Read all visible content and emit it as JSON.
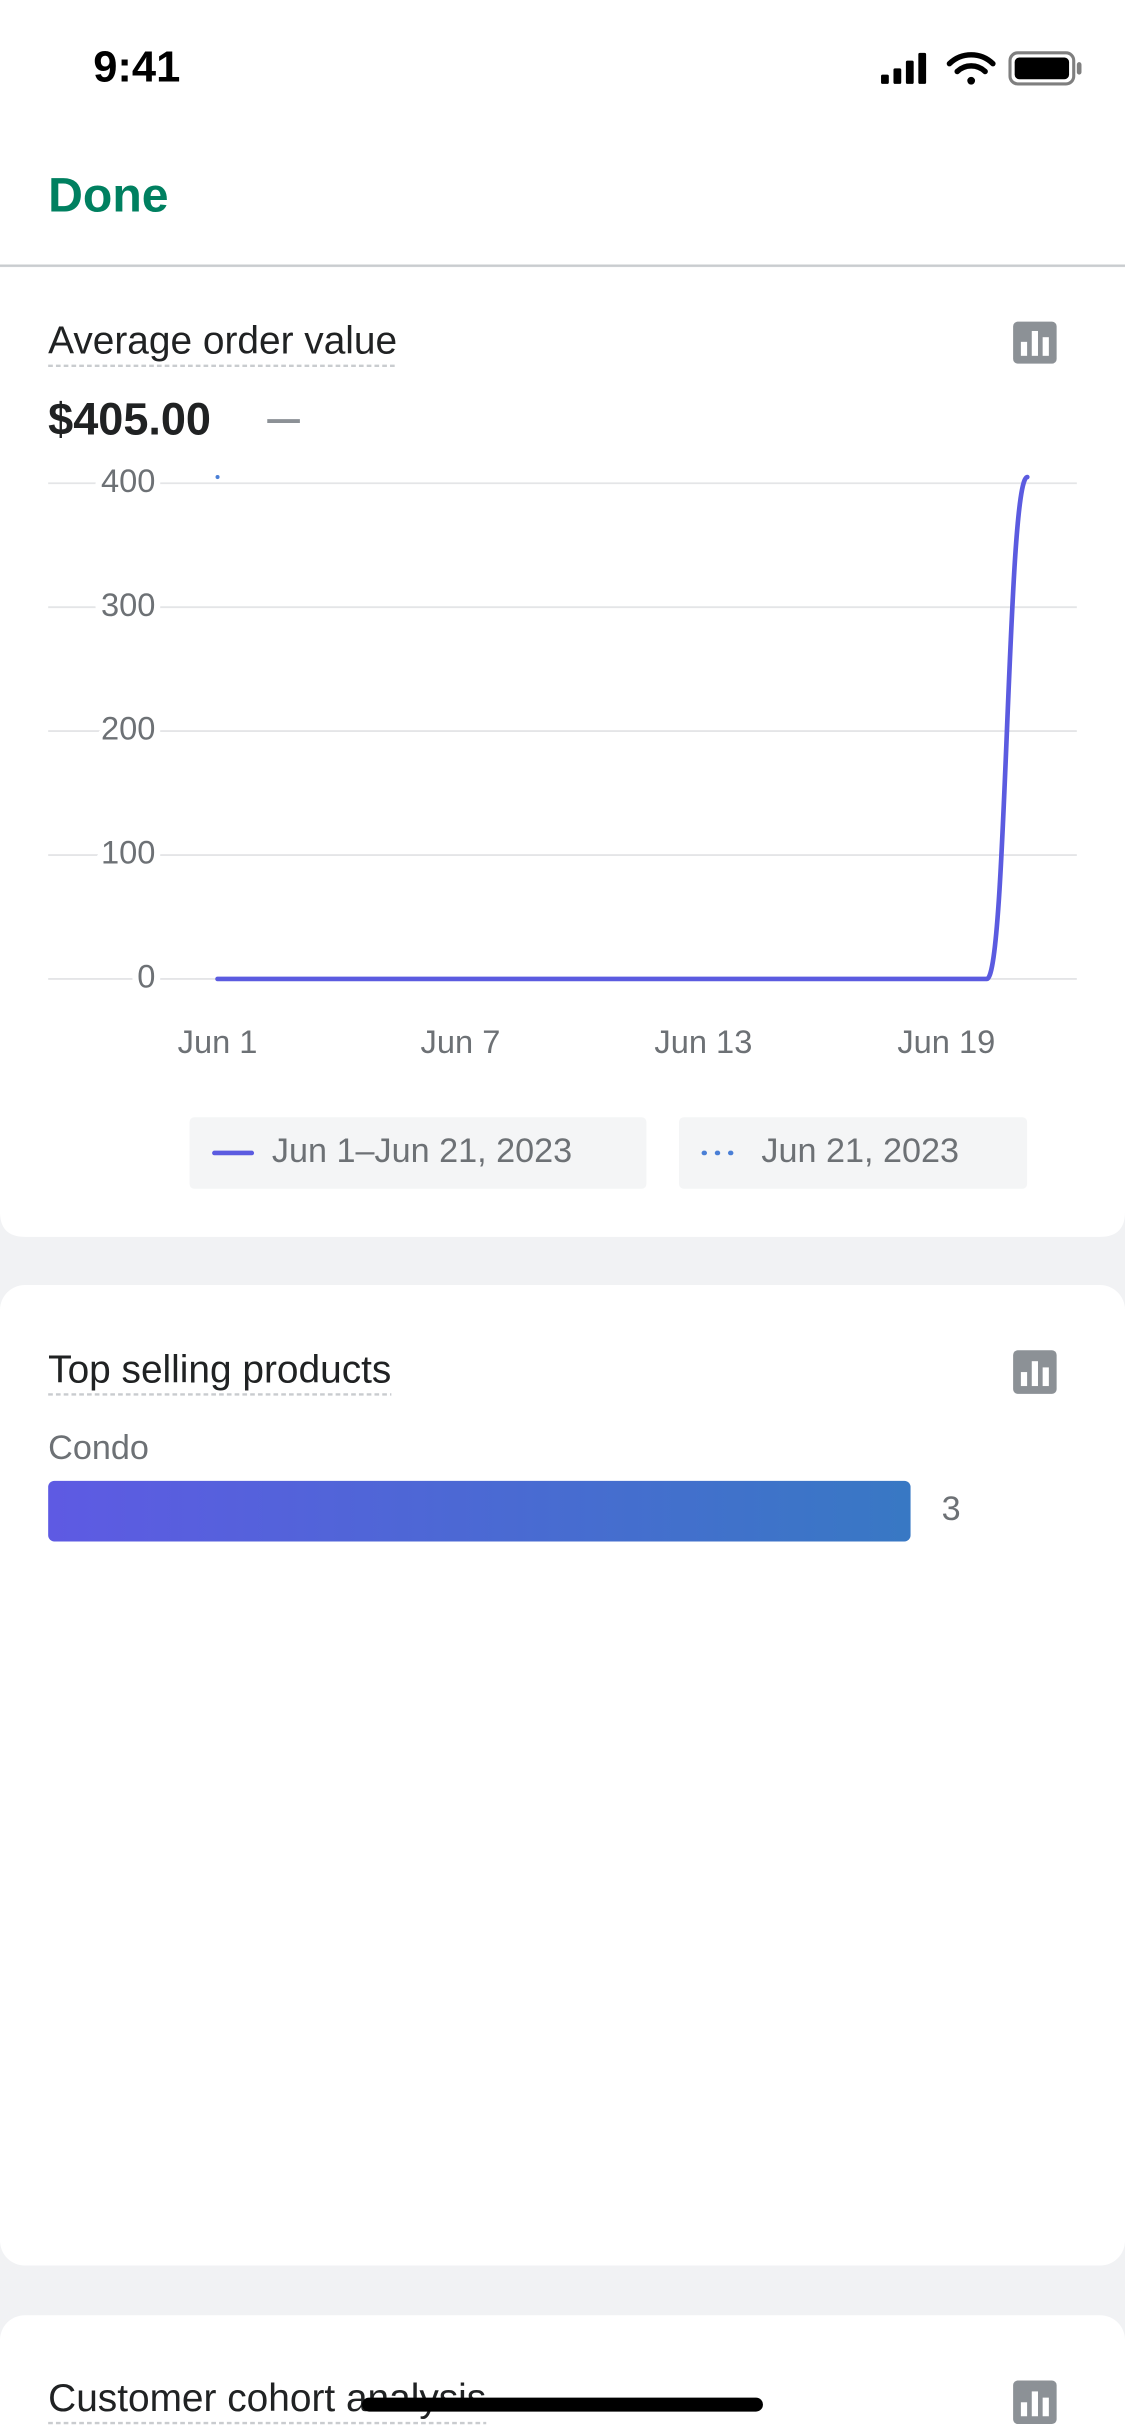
{
  "status_bar": {
    "time": "9:41"
  },
  "nav": {
    "done": "Done"
  },
  "chart_data": [
    {
      "type": "line",
      "title": "Average order value",
      "summary": "$405.00",
      "categories": [
        "Jun 1",
        null,
        null,
        null,
        null,
        null,
        "Jun 7",
        null,
        null,
        null,
        null,
        null,
        "Jun 13",
        null,
        null,
        null,
        null,
        null,
        "Jun 19",
        null,
        null
      ],
      "series": [
        {
          "name": "Jun 1–Jun 21, 2023",
          "color": "#5b5be0",
          "style": "solid",
          "values": [
            0,
            0,
            0,
            0,
            0,
            0,
            0,
            0,
            0,
            0,
            0,
            0,
            0,
            0,
            0,
            0,
            0,
            0,
            0,
            0,
            405
          ]
        },
        {
          "name": "Jun 21, 2023",
          "color": "#4a7fd6",
          "style": "dotted",
          "values": [
            405,
            null,
            null,
            null,
            null,
            null,
            null,
            null,
            null,
            null,
            null,
            null,
            null,
            null,
            null,
            null,
            null,
            null,
            null,
            null,
            null
          ]
        }
      ],
      "ylim": [
        0,
        400
      ],
      "yticks": [
        0,
        100,
        200,
        300,
        400
      ],
      "grid": true
    },
    {
      "type": "hbar",
      "title": "Top selling products",
      "categories": [
        "Condo"
      ],
      "values": [
        3
      ],
      "xlim": [
        0,
        3
      ],
      "colors": [
        "#5e5ae3",
        "#3878c4"
      ]
    }
  ],
  "cards": [
    {
      "title": "Customer cohort analysis"
    }
  ]
}
